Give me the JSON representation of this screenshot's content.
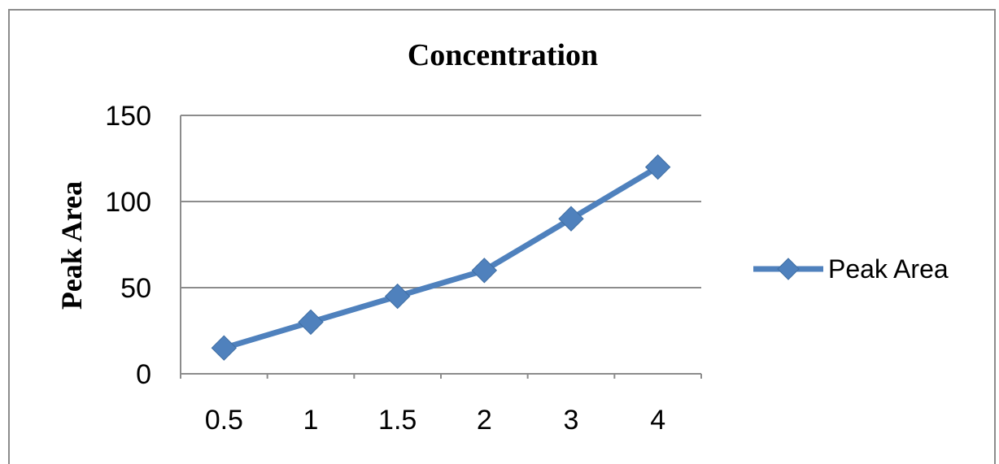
{
  "chart_data": {
    "type": "line",
    "title": "Concentration",
    "xlabel": "",
    "ylabel": "Peak Area",
    "categories": [
      "0.5",
      "1",
      "1.5",
      "2",
      "3",
      "4"
    ],
    "series": [
      {
        "name": "Peak Area",
        "values": [
          15,
          30,
          45,
          60,
          90,
          120
        ],
        "color": "#4F81BD",
        "marker": "diamond"
      }
    ],
    "ylim": [
      0,
      150
    ],
    "yticks": [
      0,
      50,
      100,
      150
    ],
    "grid": true,
    "legend": "right"
  }
}
